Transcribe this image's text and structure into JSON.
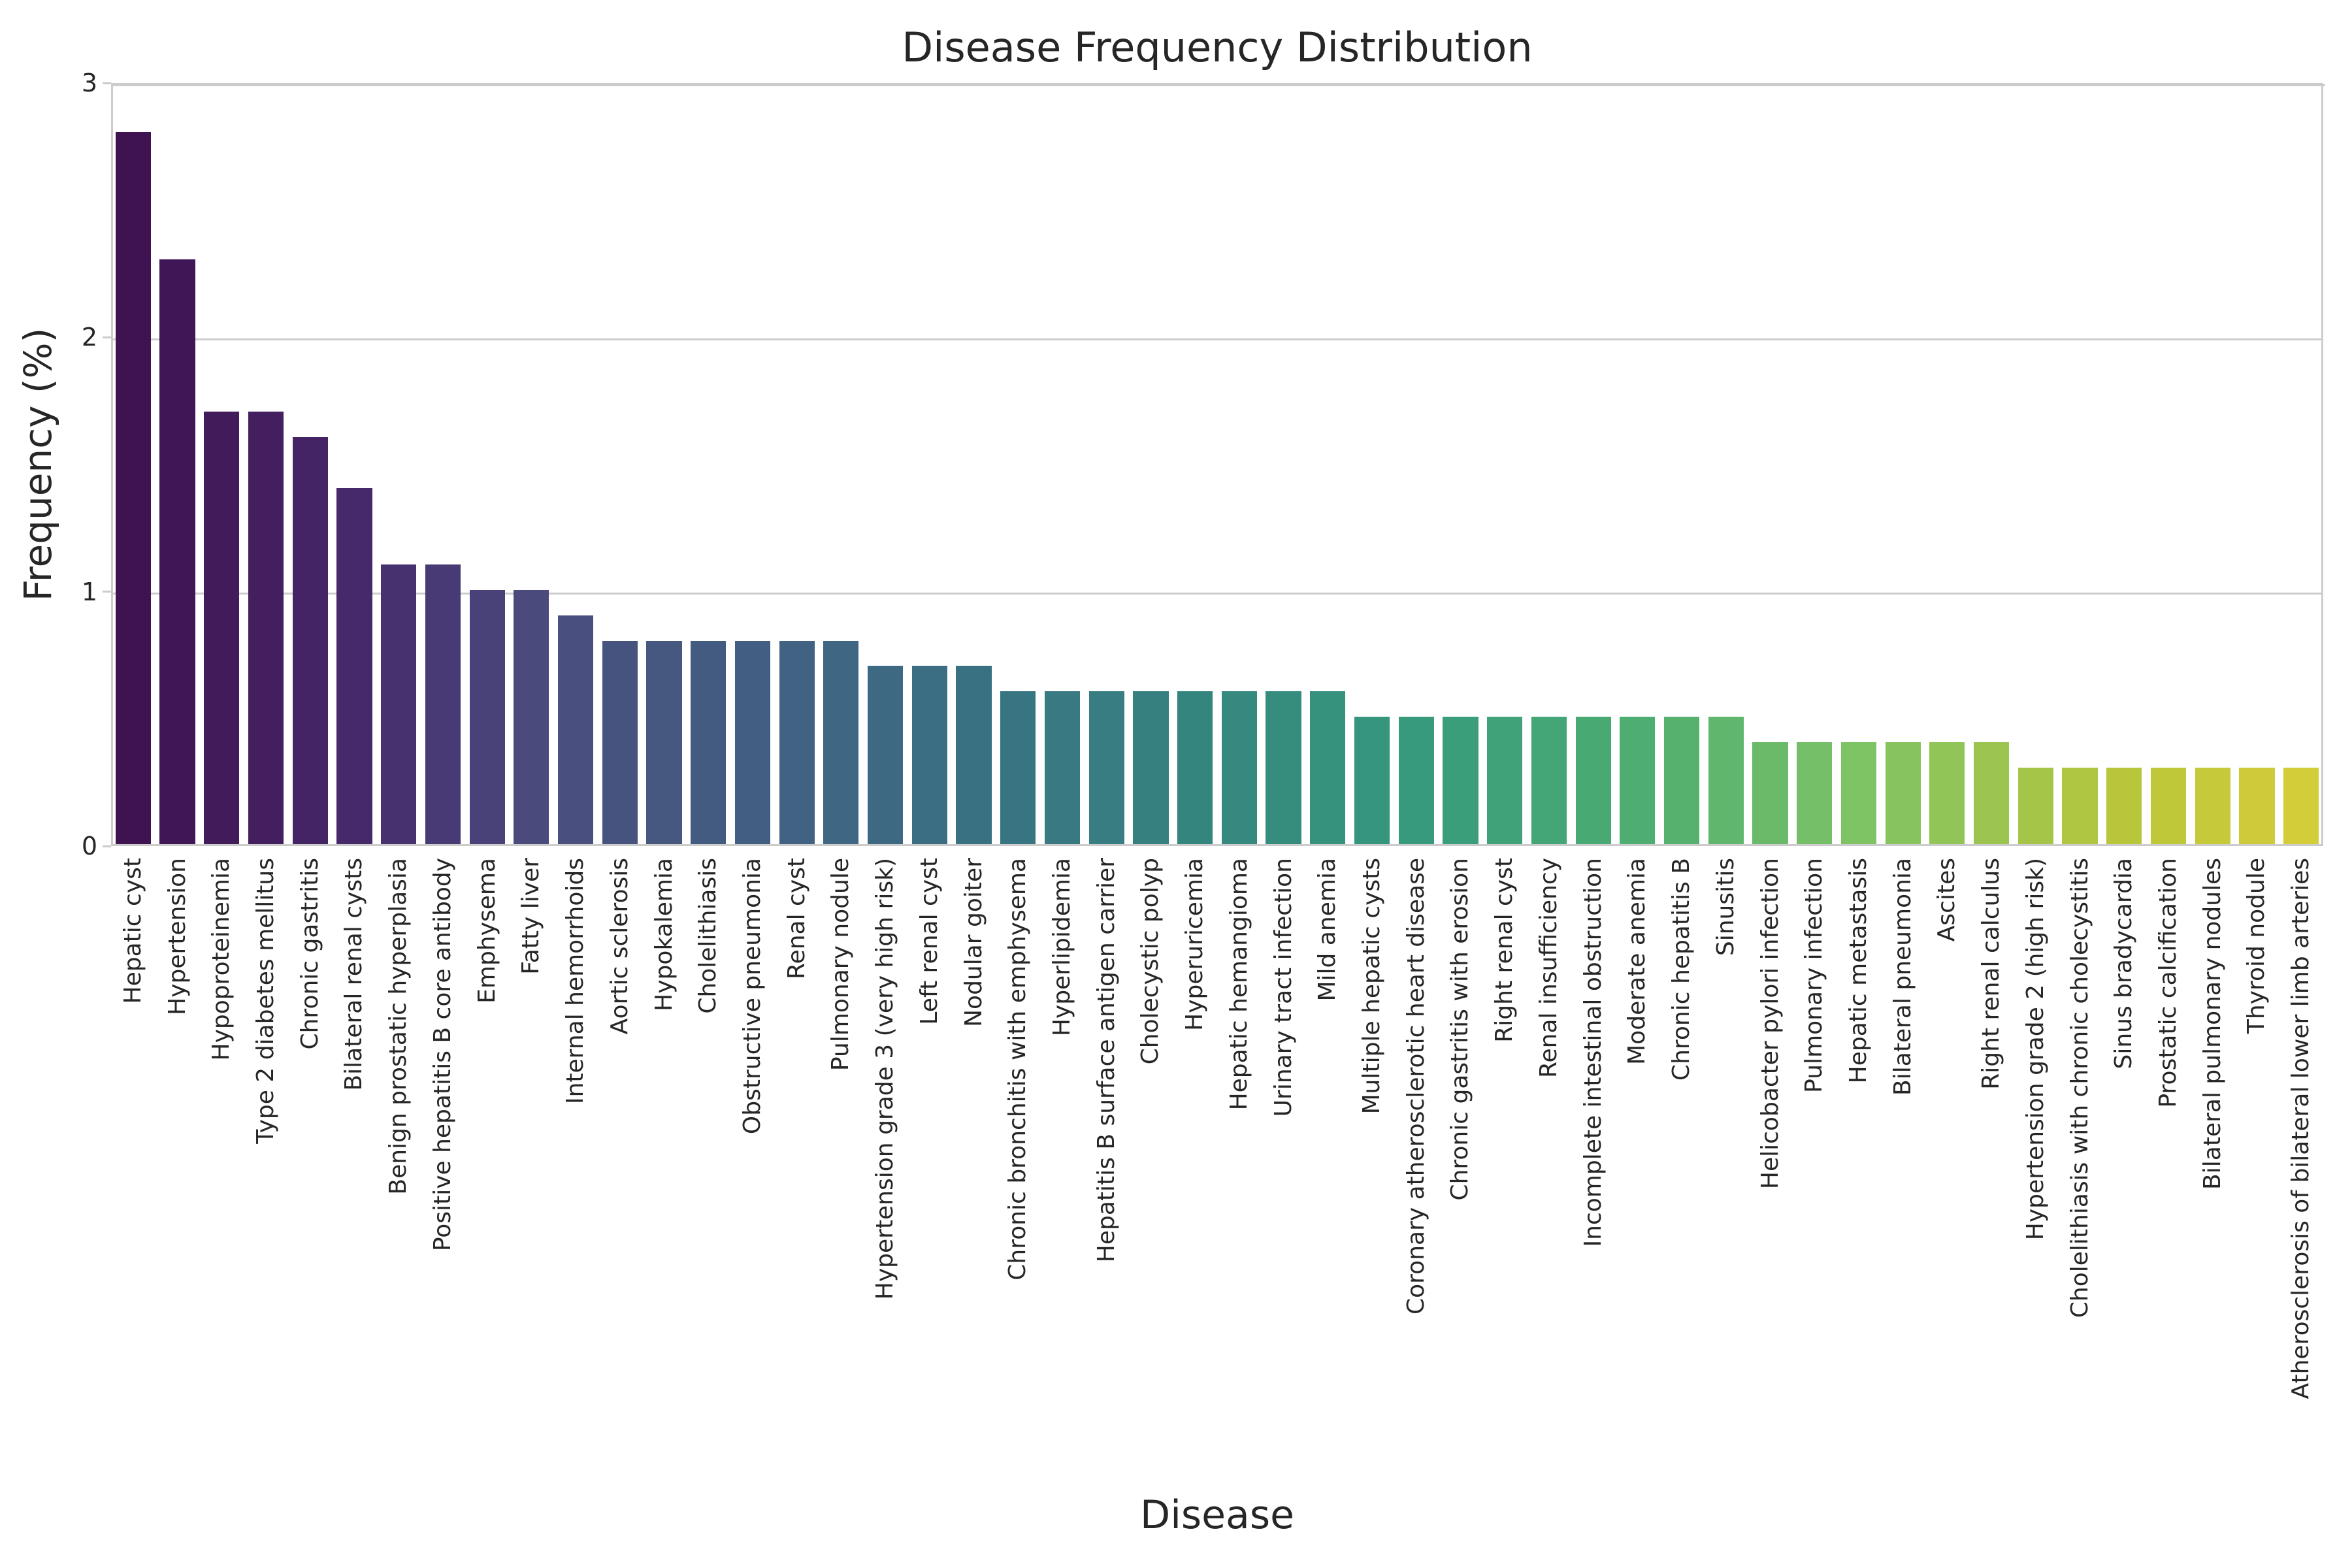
{
  "colors": {
    "text": "#262626",
    "grid": "#cccccc",
    "background": "#ffffff"
  },
  "chart_data": {
    "type": "bar",
    "title": "Disease Frequency Distribution",
    "xlabel": "Disease",
    "ylabel": "Frequency (%)",
    "ylim": [
      0,
      3
    ],
    "yticks": [
      0,
      1,
      2,
      3
    ],
    "grid": true,
    "legend": false,
    "bar_color_palette": "viridis-desaturated",
    "palette_stops": [
      {
        "pos": 0.0,
        "color": "#3f1251"
      },
      {
        "pos": 0.1,
        "color": "#46286a"
      },
      {
        "pos": 0.19,
        "color": "#4a4d7e"
      },
      {
        "pos": 0.29,
        "color": "#425f82"
      },
      {
        "pos": 0.39,
        "color": "#397183"
      },
      {
        "pos": 0.5,
        "color": "#35877f"
      },
      {
        "pos": 0.6,
        "color": "#379c7c"
      },
      {
        "pos": 0.7,
        "color": "#4fae70"
      },
      {
        "pos": 0.8,
        "color": "#80c464"
      },
      {
        "pos": 0.92,
        "color": "#b8c639"
      },
      {
        "pos": 1.0,
        "color": "#d4cd3a"
      }
    ],
    "categories": [
      "Hepatic cyst",
      "Hypertension",
      "Hypoproteinemia",
      "Type 2 diabetes mellitus",
      "Chronic gastritis",
      "Bilateral renal cysts",
      "Benign prostatic hyperplasia",
      "Positive hepatitis B core antibody",
      "Emphysema",
      "Fatty liver",
      "Internal hemorrhoids",
      "Aortic sclerosis",
      "Hypokalemia",
      "Cholelithiasis",
      "Obstructive pneumonia",
      "Renal cyst",
      "Pulmonary nodule",
      "Hypertension grade 3 (very high risk)",
      "Left renal cyst",
      "Nodular goiter",
      "Chronic bronchitis with emphysema",
      "Hyperlipidemia",
      "Hepatitis B surface antigen carrier",
      "Cholecystic polyp",
      "Hyperuricemia",
      "Hepatic hemangioma",
      "Urinary tract infection",
      "Mild anemia",
      "Multiple hepatic cysts",
      "Coronary atherosclerotic heart disease",
      "Chronic gastritis with erosion",
      "Right renal cyst",
      "Renal insufficiency",
      "Incomplete intestinal obstruction",
      "Moderate anemia",
      "Chronic hepatitis B",
      "Sinusitis",
      "Helicobacter pylori infection",
      "Pulmonary infection",
      "Hepatic metastasis",
      "Bilateral pneumonia",
      "Ascites",
      "Right renal calculus",
      "Hypertension grade 2 (high risk)",
      "Cholelithiasis with chronic cholecystitis",
      "Sinus bradycardia",
      "Prostatic calcification",
      "Bilateral pulmonary nodules",
      "Thyroid nodule",
      "Atherosclerosis of bilateral lower limb arteries"
    ],
    "values": [
      2.8,
      2.3,
      1.7,
      1.7,
      1.6,
      1.4,
      1.1,
      1.1,
      1.0,
      1.0,
      0.9,
      0.8,
      0.8,
      0.8,
      0.8,
      0.8,
      0.8,
      0.7,
      0.7,
      0.7,
      0.6,
      0.6,
      0.6,
      0.6,
      0.6,
      0.6,
      0.6,
      0.6,
      0.5,
      0.5,
      0.5,
      0.5,
      0.5,
      0.5,
      0.5,
      0.5,
      0.5,
      0.4,
      0.4,
      0.4,
      0.4,
      0.4,
      0.4,
      0.3,
      0.3,
      0.3,
      0.3,
      0.3,
      0.3,
      0.3
    ]
  }
}
